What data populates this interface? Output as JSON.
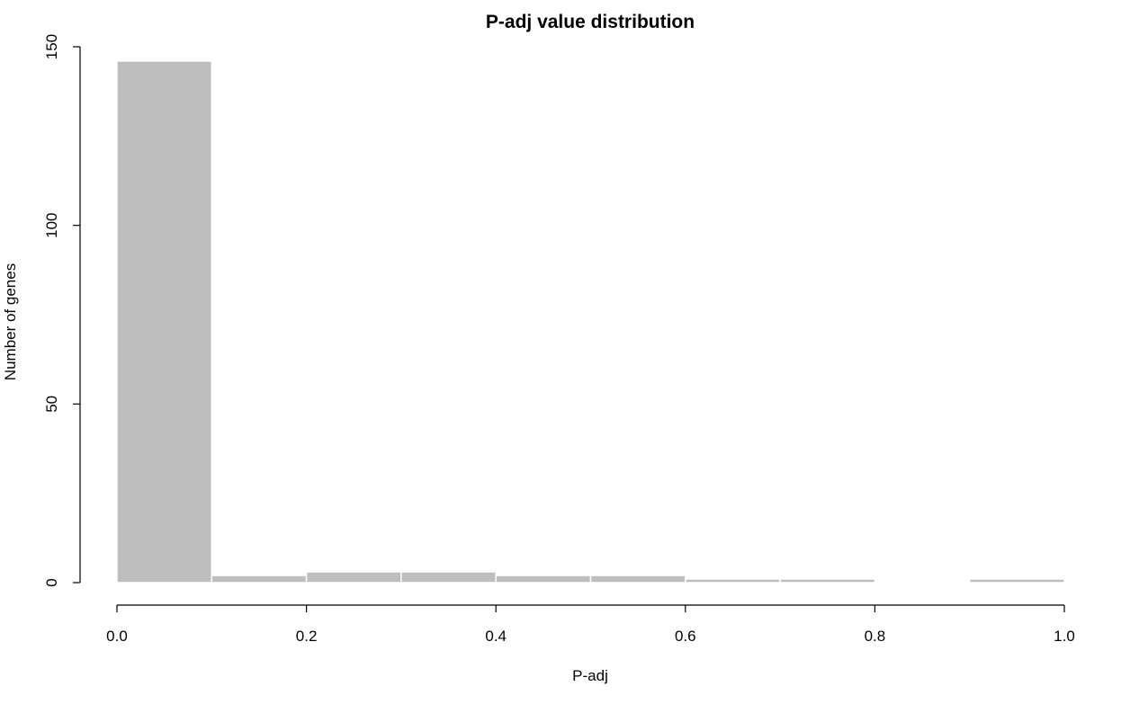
{
  "chart_data": {
    "type": "bar",
    "title": "P-adj value distribution",
    "xlabel": "P-adj",
    "ylabel": "Number of genes",
    "bins": [
      {
        "from": 0.0,
        "to": 0.1,
        "count": 146
      },
      {
        "from": 0.1,
        "to": 0.2,
        "count": 2
      },
      {
        "from": 0.2,
        "to": 0.3,
        "count": 3
      },
      {
        "from": 0.3,
        "to": 0.4,
        "count": 3
      },
      {
        "from": 0.4,
        "to": 0.5,
        "count": 2
      },
      {
        "from": 0.5,
        "to": 0.6,
        "count": 2
      },
      {
        "from": 0.6,
        "to": 0.7,
        "count": 1
      },
      {
        "from": 0.7,
        "to": 0.8,
        "count": 1
      },
      {
        "from": 0.8,
        "to": 0.9,
        "count": 0
      },
      {
        "from": 0.9,
        "to": 1.0,
        "count": 1
      }
    ],
    "xlim": [
      0,
      1
    ],
    "ylim": [
      0,
      150
    ],
    "xticks": [
      0.0,
      0.2,
      0.4,
      0.6,
      0.8,
      1.0
    ],
    "xtick_labels": [
      "0.0",
      "0.2",
      "0.4",
      "0.6",
      "0.8",
      "1.0"
    ],
    "yticks": [
      0,
      50,
      100,
      150
    ],
    "ytick_labels": [
      "0",
      "50",
      "100",
      "150"
    ],
    "grid": false,
    "bar_color": "#bebebe",
    "bar_border_color": "#ffffff"
  }
}
